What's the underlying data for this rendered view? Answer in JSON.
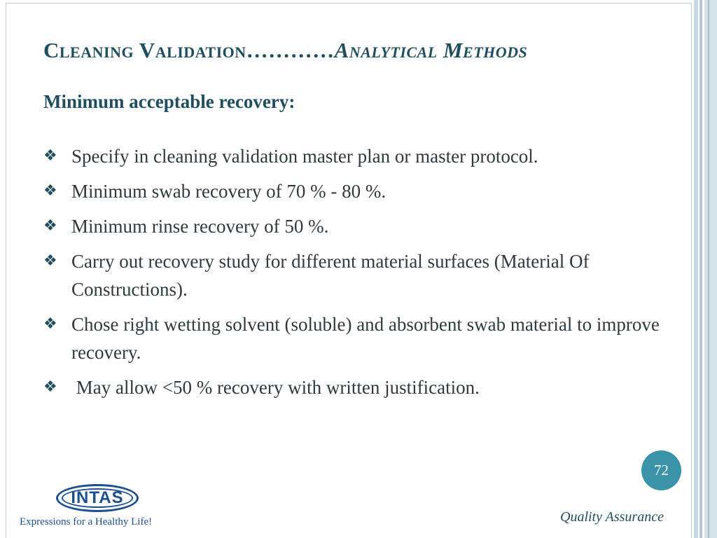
{
  "slide": {
    "title_main": "Cleaning Validation",
    "title_dots": "…………",
    "title_sub": "Analytical Methods",
    "subtitle": "Minimum acceptable recovery:",
    "bullet_icon": "diamond-flourish-icon",
    "bullets": [
      "Specify in cleaning validation master plan or master protocol.",
      "Minimum swab recovery of 70 % - 80 %.",
      "Minimum rinse recovery of 50 %.",
      "Carry out recovery study for different material surfaces (Material Of Constructions).",
      "Chose right wetting solvent (soluble) and absorbent swab material to improve recovery.",
      " May allow <50 % recovery with written justification."
    ],
    "page_number": "72"
  },
  "footer": {
    "logo_text": "INTAS",
    "tagline": "Expressions for a Healthy Life!",
    "label": "Quality Assurance"
  },
  "colors": {
    "title": "#1f4e5f",
    "body_text": "#2e3a40",
    "page_circle": "#3b93a8",
    "logo_blue": "#1b4f93",
    "frame": "#b9ccd6"
  }
}
